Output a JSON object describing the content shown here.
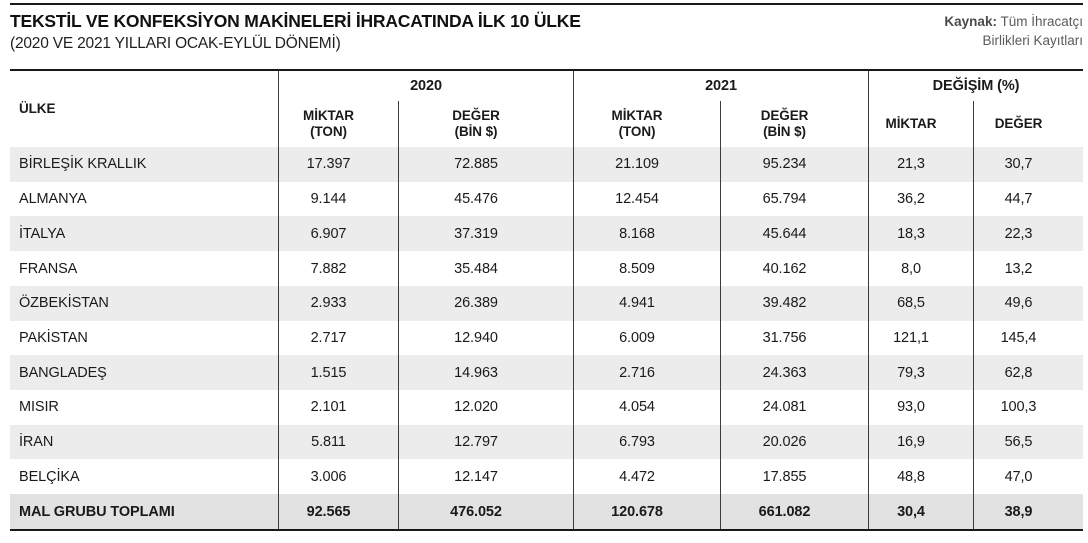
{
  "page": {
    "title": "TEKSTİL VE KONFEKSİYON MAKİNELERİ İHRACATINDA İLK 10 ÜLKE",
    "subtitle": "(2020 VE 2021 YILLARI OCAK-EYLÜL DÖNEMİ)",
    "source": {
      "label": "Kaynak:",
      "line1": "Tüm İhracatçı",
      "line2": "Birlikleri Kayıtları"
    }
  },
  "colors": {
    "text": "#1a1a1a",
    "rule": "#181818",
    "divider": "#3c3c3c",
    "stripe": "#ececec",
    "total_stripe": "#e2e2e2",
    "source_text": "#5a5b5e"
  },
  "chart_data": {
    "type": "table",
    "title": "TEKSTİL VE KONFEKSİYON MAKİNELERİ İHRACATINDA İLK 10 ÜLKE (2020 VE 2021 YILLARI OCAK-EYLÜL DÖNEMİ)",
    "header": {
      "country": "ÜLKE",
      "groups": [
        {
          "label": "2020",
          "subs": [
            {
              "line1": "MİKTAR",
              "line2": "(TON)"
            },
            {
              "line1": "DEĞER",
              "line2": "(BİN $)"
            }
          ]
        },
        {
          "label": "2021",
          "subs": [
            {
              "line1": "MİKTAR",
              "line2": "(TON)"
            },
            {
              "line1": "DEĞER",
              "line2": "(BİN $)"
            }
          ]
        },
        {
          "label": "DEĞİŞİM (%)",
          "subs": [
            {
              "line1": "MİKTAR",
              "line2": ""
            },
            {
              "line1": "DEĞER",
              "line2": ""
            }
          ]
        }
      ]
    },
    "rows": [
      {
        "country": "BİRLEŞİK KRALLIK",
        "values": [
          "17.397",
          "72.885",
          "21.109",
          "95.234",
          "21,3",
          "30,7"
        ]
      },
      {
        "country": "ALMANYA",
        "values": [
          "9.144",
          "45.476",
          "12.454",
          "65.794",
          "36,2",
          "44,7"
        ]
      },
      {
        "country": "İTALYA",
        "values": [
          "6.907",
          "37.319",
          "8.168",
          "45.644",
          "18,3",
          "22,3"
        ]
      },
      {
        "country": "FRANSA",
        "values": [
          "7.882",
          "35.484",
          "8.509",
          "40.162",
          "8,0",
          "13,2"
        ]
      },
      {
        "country": "ÖZBEKİSTAN",
        "values": [
          "2.933",
          "26.389",
          "4.941",
          "39.482",
          "68,5",
          "49,6"
        ]
      },
      {
        "country": "PAKİSTAN",
        "values": [
          "2.717",
          "12.940",
          "6.009",
          "31.756",
          "121,1",
          "145,4"
        ]
      },
      {
        "country": "BANGLADEŞ",
        "values": [
          "1.515",
          "14.963",
          "2.716",
          "24.363",
          "79,3",
          "62,8"
        ]
      },
      {
        "country": "MISIR",
        "values": [
          "2.101",
          "12.020",
          "4.054",
          "24.081",
          "93,0",
          "100,3"
        ]
      },
      {
        "country": "İRAN",
        "values": [
          "5.811",
          "12.797",
          "6.793",
          "20.026",
          "16,9",
          "56,5"
        ]
      },
      {
        "country": "BELÇİKA",
        "values": [
          "3.006",
          "12.147",
          "4.472",
          "17.855",
          "48,8",
          "47,0"
        ]
      }
    ],
    "total_row": {
      "country": "MAL GRUBU TOPLAMI",
      "values": [
        "92.565",
        "476.052",
        "120.678",
        "661.082",
        "30,4",
        "38,9"
      ]
    }
  }
}
